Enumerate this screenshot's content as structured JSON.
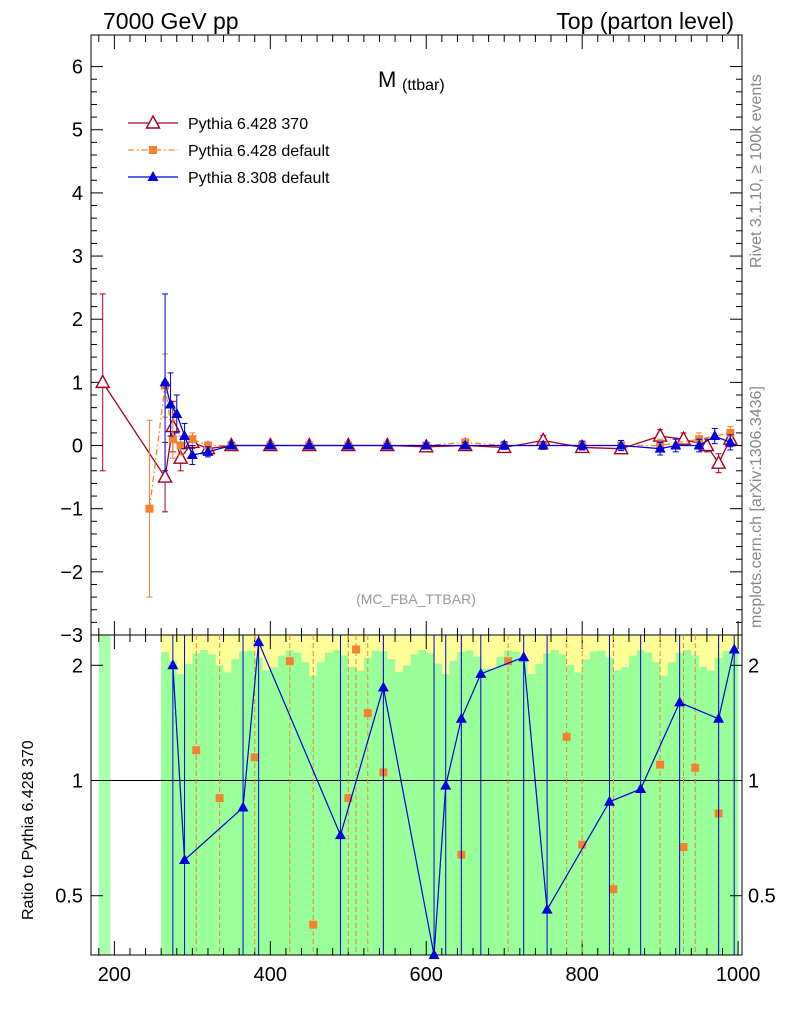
{
  "header": {
    "left": "7000 GeV pp",
    "right": "Top (parton level)"
  },
  "side_labels": {
    "rivet": "Rivet 3.1.10, ≥ 100k events",
    "mcplots": "mcplots.cern.ch [arXiv:1306.3436]"
  },
  "ratio_ylabel": "Ratio to Pythia 6.428 370",
  "chart_data": {
    "type": "line",
    "title_main": "M",
    "title_sub": "(ttbar)",
    "watermark": "(MC_FBA_TTBAR)",
    "xlabel": "",
    "ylabel": "",
    "xlim": [
      170,
      1005
    ],
    "ylim": [
      -3,
      6.5
    ],
    "ratio_ylim": [
      0.35,
      2.4
    ],
    "x_ticks": [
      "200",
      "400",
      "600",
      "800",
      "1000"
    ],
    "y_ticks": [
      "6",
      "5",
      "4",
      "3",
      "2",
      "1",
      "0",
      "−1",
      "−2",
      "−3"
    ],
    "ratio_y_ticks": [
      "2",
      "1",
      "0.5"
    ],
    "legend_position": "top-left",
    "legend": [
      {
        "name": "Pythia 6.428 370",
        "color": "#a50021",
        "marker": "open-triangle",
        "style": "solid"
      },
      {
        "name": "Pythia 6.428 default",
        "color": "#f58231",
        "marker": "square",
        "style": "dash-dot"
      },
      {
        "name": "Pythia 8.308 default",
        "color": "#0000dd",
        "marker": "filled-triangle",
        "style": "solid"
      }
    ],
    "series": [
      {
        "name": "Pythia 6.428 370",
        "x": [
          185,
          265,
          275,
          285,
          300,
          320,
          350,
          400,
          450,
          500,
          550,
          600,
          650,
          700,
          750,
          800,
          850,
          900,
          930,
          960,
          975,
          990
        ],
        "values": [
          1.0,
          -0.5,
          0.3,
          -0.2,
          0.05,
          -0.05,
          0.0,
          0.0,
          0.0,
          0.0,
          0.0,
          -0.02,
          0.0,
          -0.03,
          0.08,
          -0.03,
          -0.05,
          0.15,
          0.1,
          0.0,
          -0.28,
          0.1
        ],
        "errors": [
          1.4,
          0.55,
          0.4,
          0.2,
          0.1,
          0.05,
          0.03,
          0.03,
          0.03,
          0.03,
          0.03,
          0.05,
          0.05,
          0.05,
          0.08,
          0.08,
          0.08,
          0.1,
          0.1,
          0.1,
          0.15,
          0.12
        ]
      },
      {
        "name": "Pythia 6.428 default",
        "x": [
          245,
          265,
          275,
          285,
          300,
          320,
          350,
          400,
          450,
          500,
          550,
          600,
          650,
          700,
          750,
          800,
          850,
          900,
          950,
          990
        ],
        "values": [
          -1.0,
          0.95,
          0.1,
          0.0,
          0.1,
          0.0,
          0.0,
          0.0,
          0.0,
          0.0,
          0.0,
          0.0,
          0.05,
          0.0,
          0.0,
          0.0,
          0.0,
          0.0,
          0.1,
          0.2
        ],
        "errors": [
          1.4,
          0.5,
          0.3,
          0.15,
          0.1,
          0.05,
          0.03,
          0.03,
          0.03,
          0.03,
          0.03,
          0.04,
          0.05,
          0.06,
          0.06,
          0.07,
          0.08,
          0.1,
          0.1,
          0.1
        ]
      },
      {
        "name": "Pythia 8.308 default",
        "x": [
          265,
          272,
          280,
          290,
          300,
          320,
          350,
          400,
          450,
          500,
          550,
          600,
          650,
          700,
          750,
          800,
          850,
          900,
          920,
          950,
          970,
          990
        ],
        "values": [
          1.0,
          0.65,
          0.5,
          0.15,
          -0.15,
          -0.1,
          0.0,
          0.0,
          0.0,
          0.0,
          0.0,
          0.0,
          0.0,
          0.0,
          0.0,
          0.0,
          0.0,
          -0.05,
          0.0,
          0.0,
          0.15,
          0.05
        ],
        "errors": [
          1.4,
          0.5,
          0.3,
          0.2,
          0.15,
          0.08,
          0.05,
          0.03,
          0.03,
          0.03,
          0.03,
          0.04,
          0.05,
          0.06,
          0.06,
          0.07,
          0.08,
          0.1,
          0.1,
          0.1,
          0.12,
          0.12
        ]
      }
    ],
    "ratio_series": [
      {
        "name": "Pythia 6.428 default",
        "x": [
          305,
          335,
          380,
          425,
          455,
          500,
          510,
          525,
          545,
          645,
          705,
          780,
          800,
          840,
          900,
          930,
          945,
          975
        ],
        "values": [
          1.2,
          0.9,
          1.15,
          2.05,
          0.42,
          0.9,
          2.2,
          1.5,
          1.05,
          0.64,
          2.05,
          1.3,
          0.68,
          0.52,
          1.1,
          0.67,
          1.08,
          0.82
        ]
      },
      {
        "name": "Pythia 8.308 default",
        "x": [
          275,
          290,
          365,
          385,
          490,
          545,
          610,
          625,
          645,
          670,
          725,
          755,
          835,
          875,
          925,
          975,
          995
        ],
        "values": [
          2.0,
          0.62,
          0.85,
          2.3,
          0.72,
          1.75,
          0.35,
          0.97,
          1.45,
          1.9,
          2.1,
          0.46,
          0.88,
          0.95,
          1.6,
          1.45,
          2.2
        ]
      }
    ]
  }
}
